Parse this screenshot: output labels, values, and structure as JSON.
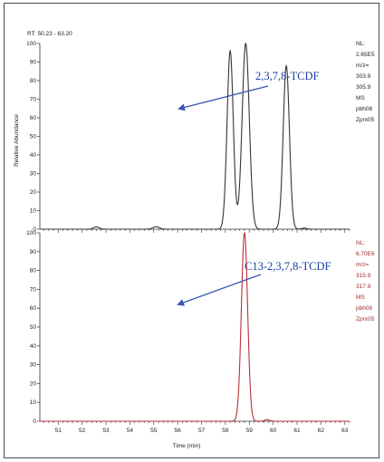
{
  "header": {
    "rt_text": "RT: 50.23 - 63.20",
    "ylabel": "Relative Abundance"
  },
  "colors": {
    "panel1": "#3b3137",
    "panel2": "#b82e3a",
    "arrow": "#3a55b4",
    "label1": "#1a3da0",
    "label2": "#1a3da0"
  },
  "chart_data": [
    {
      "type": "line",
      "panel": "top",
      "ylim": [
        0,
        100
      ],
      "yticks": [
        0,
        10,
        20,
        30,
        40,
        50,
        60,
        70,
        80,
        90,
        100
      ],
      "peaks": [
        {
          "rt": 52.6,
          "height": 1.2,
          "sigma": 0.12
        },
        {
          "rt": 55.1,
          "height": 1.3,
          "sigma": 0.14
        },
        {
          "rt": 58.2,
          "height": 96,
          "sigma": 0.13
        },
        {
          "rt": 58.85,
          "height": 100,
          "sigma": 0.15
        },
        {
          "rt": 60.55,
          "height": 88,
          "sigma": 0.13
        },
        {
          "rt": 61.3,
          "height": 0.6,
          "sigma": 0.1
        }
      ],
      "annotation": {
        "text": "2,3,7,8-TCDF"
      },
      "side_labels": [
        "NL:",
        "2.65E5",
        "m/z=",
        "303.9",
        "305.9",
        "MS",
        "pbh08",
        "Zprx05"
      ]
    },
    {
      "type": "line",
      "panel": "bottom",
      "ylim": [
        0,
        100
      ],
      "yticks": [
        0,
        10,
        20,
        30,
        40,
        50,
        60,
        70,
        80,
        90,
        100
      ],
      "peaks": [
        {
          "rt": 58.8,
          "height": 100,
          "sigma": 0.13
        },
        {
          "rt": 59.75,
          "height": 0.9,
          "sigma": 0.1
        }
      ],
      "annotation": {
        "text": "C13-2,3,7,8-TCDF"
      },
      "side_labels": [
        "NL:",
        "6.70E6",
        "m/z=",
        "315.9",
        "317.9",
        "MS",
        "pbh08",
        "Zprx05"
      ]
    }
  ],
  "x_axis": {
    "xlim": [
      50.23,
      63.2
    ],
    "ticks": [
      50,
      51,
      52,
      53,
      54,
      55,
      56,
      57,
      58,
      59,
      60,
      61,
      62,
      63
    ],
    "tick_labels": [
      "50",
      "51",
      "52",
      "53",
      "54",
      "55",
      "56",
      "57",
      "58",
      "59",
      "60",
      "61",
      "62",
      "63"
    ],
    "title": "Time (min)"
  }
}
